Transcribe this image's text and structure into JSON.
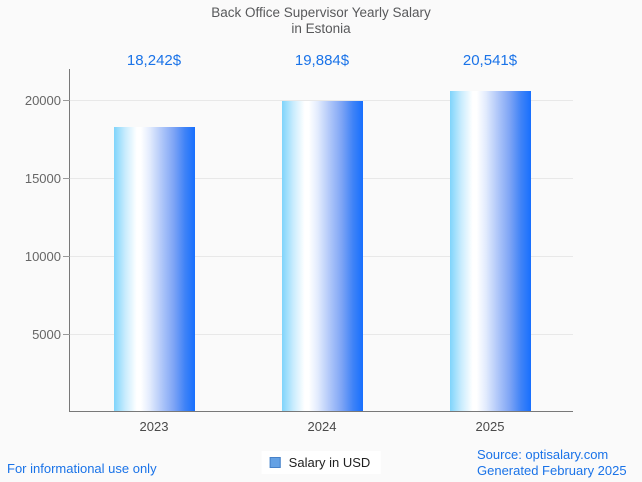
{
  "chart_data": {
    "type": "bar",
    "title": "Back Office Supervisor Yearly Salary in Estonia",
    "title_lines": [
      "Back Office Supervisor Yearly Salary",
      "in Estonia"
    ],
    "categories": [
      "2023",
      "2024",
      "2025"
    ],
    "series": [
      {
        "name": "Salary in USD",
        "values": [
          18242,
          19884,
          20541
        ]
      }
    ],
    "value_labels": [
      "18,242$",
      "19,884$",
      "20,541$"
    ],
    "xlabel": "",
    "ylabel": "",
    "ylim": [
      0,
      22000
    ],
    "yticks": [
      5000,
      10000,
      15000,
      20000
    ],
    "grid": true,
    "legend_position": "bottom-center",
    "colors": {
      "accent_blue": "#1a73e8",
      "bar_gradient_left": "#7fd4fb",
      "bar_gradient_mid": "#ffffff",
      "bar_gradient_right": "#176ffe",
      "legend_swatch_fill": "#64a1e4",
      "legend_swatch_border": "#4681c8",
      "title_text": "#58595b",
      "axis_line": "#787878",
      "gridline": "#e8e8e8",
      "tick_text": "#666666",
      "category_text": "#4a4a4a",
      "background": "#fafafa"
    }
  },
  "legend": {
    "label": "Salary in USD"
  },
  "footer": {
    "note": "For informational use only",
    "source_line1": "Source: optisalary.com",
    "source_line2": "Generated February 2025"
  }
}
